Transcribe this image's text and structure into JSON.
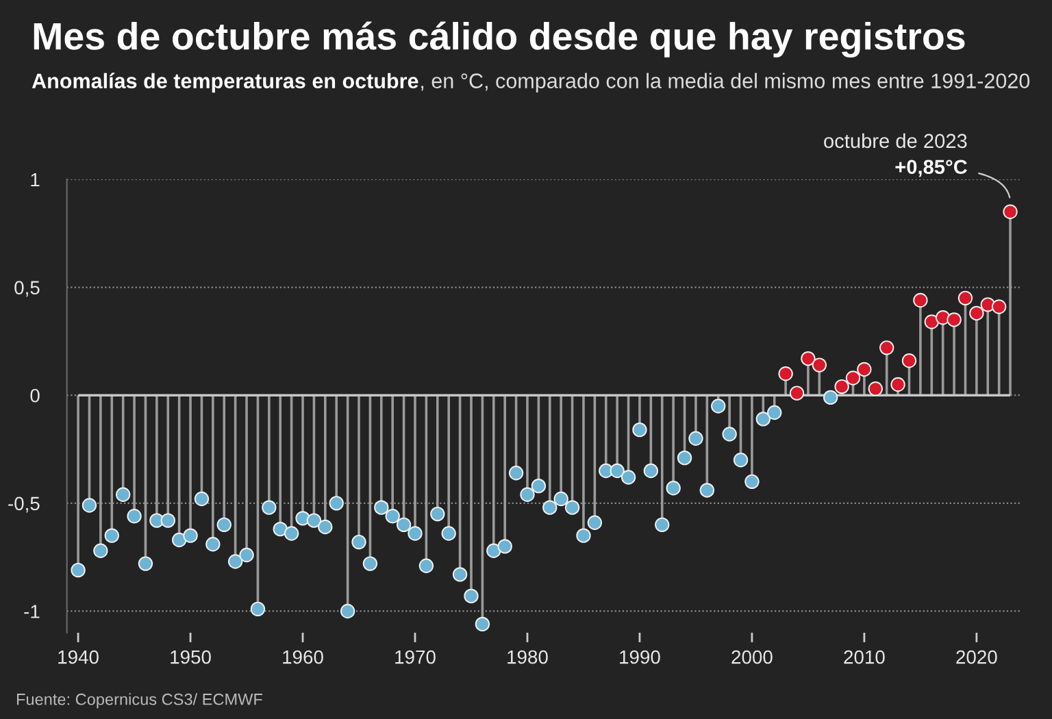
{
  "chart_data": {
    "type": "lollipop",
    "title": "Mes de octubre más cálido desde que hay registros",
    "subtitle": "Anomalías de temperaturas en octubre, en °C, comparado con la media del mismo mes entre 1991-2020",
    "x": [
      1940,
      1941,
      1942,
      1943,
      1944,
      1945,
      1946,
      1947,
      1948,
      1949,
      1950,
      1951,
      1952,
      1953,
      1954,
      1955,
      1956,
      1957,
      1958,
      1959,
      1960,
      1961,
      1962,
      1963,
      1964,
      1965,
      1966,
      1967,
      1968,
      1969,
      1970,
      1971,
      1972,
      1973,
      1974,
      1975,
      1976,
      1977,
      1978,
      1979,
      1980,
      1981,
      1982,
      1983,
      1984,
      1985,
      1986,
      1987,
      1988,
      1989,
      1990,
      1991,
      1992,
      1993,
      1994,
      1995,
      1996,
      1997,
      1998,
      1999,
      2000,
      2001,
      2002,
      2003,
      2004,
      2005,
      2006,
      2007,
      2008,
      2009,
      2010,
      2011,
      2012,
      2013,
      2014,
      2015,
      2016,
      2017,
      2018,
      2019,
      2020,
      2021,
      2022,
      2023
    ],
    "values": [
      -0.81,
      -0.51,
      -0.72,
      -0.65,
      -0.46,
      -0.56,
      -0.78,
      -0.58,
      -0.58,
      -0.67,
      -0.65,
      -0.48,
      -0.69,
      -0.6,
      -0.77,
      -0.74,
      -0.99,
      -0.52,
      -0.62,
      -0.64,
      -0.57,
      -0.58,
      -0.61,
      -0.5,
      -1.0,
      -0.68,
      -0.78,
      -0.52,
      -0.56,
      -0.6,
      -0.64,
      -0.79,
      -0.55,
      -0.64,
      -0.83,
      -0.93,
      -1.06,
      -0.72,
      -0.7,
      -0.36,
      -0.46,
      -0.42,
      -0.52,
      -0.48,
      -0.52,
      -0.65,
      -0.59,
      -0.35,
      -0.35,
      -0.38,
      -0.16,
      -0.35,
      -0.6,
      -0.43,
      -0.29,
      -0.2,
      -0.44,
      -0.05,
      -0.18,
      -0.3,
      -0.4,
      -0.11,
      -0.08,
      0.1,
      0.01,
      0.17,
      0.14,
      -0.01,
      0.04,
      0.08,
      0.12,
      0.03,
      0.22,
      0.05,
      0.16,
      0.44,
      0.34,
      0.36,
      0.35,
      0.45,
      0.38,
      0.42,
      0.41,
      0.85
    ],
    "colors": [
      "#6db3d4",
      "#6db3d4",
      "#6db3d4",
      "#6db3d4",
      "#6db3d4",
      "#6db3d4",
      "#6db3d4",
      "#6db3d4",
      "#6db3d4",
      "#6db3d4",
      "#6db3d4",
      "#6db3d4",
      "#6db3d4",
      "#6db3d4",
      "#6db3d4",
      "#6db3d4",
      "#6db3d4",
      "#6db3d4",
      "#6db3d4",
      "#6db3d4",
      "#6db3d4",
      "#6db3d4",
      "#6db3d4",
      "#6db3d4",
      "#6db3d4",
      "#6db3d4",
      "#6db3d4",
      "#6db3d4",
      "#6db3d4",
      "#6db3d4",
      "#6db3d4",
      "#6db3d4",
      "#6db3d4",
      "#6db3d4",
      "#6db3d4",
      "#6db3d4",
      "#6db3d4",
      "#6db3d4",
      "#6db3d4",
      "#6db3d4",
      "#6db3d4",
      "#6db3d4",
      "#6db3d4",
      "#6db3d4",
      "#6db3d4",
      "#6db3d4",
      "#6db3d4",
      "#6db3d4",
      "#6db3d4",
      "#6db3d4",
      "#6db3d4",
      "#6db3d4",
      "#6db3d4",
      "#6db3d4",
      "#6db3d4",
      "#6db3d4",
      "#6db3d4",
      "#6db3d4",
      "#6db3d4",
      "#6db3d4",
      "#6db3d4",
      "#6db3d4",
      "#6db3d4",
      "#d7192b",
      "#d7192b",
      "#d7192b",
      "#d7192b",
      "#6db3d4",
      "#d7192b",
      "#d7192b",
      "#d7192b",
      "#d7192b",
      "#d7192b",
      "#d7192b",
      "#d7192b",
      "#d7192b",
      "#d7192b",
      "#d7192b",
      "#d7192b",
      "#d7192b",
      "#d7192b",
      "#d7192b",
      "#d7192b",
      "#d7192b"
    ],
    "xlim": [
      1939,
      2024
    ],
    "xticks": [
      1940,
      1950,
      1960,
      1970,
      1980,
      1990,
      2000,
      2010,
      2020
    ],
    "ylim": [
      -1.1,
      1
    ],
    "yticks": [
      {
        "value": 1,
        "label": "1"
      },
      {
        "value": 0.5,
        "label": "0,5"
      },
      {
        "value": 0,
        "label": "0"
      },
      {
        "value": -0.5,
        "label": "-0,5"
      },
      {
        "value": -1,
        "label": "-1"
      }
    ],
    "grid": "y",
    "marker": "circle",
    "annotations": [
      {
        "text": "octubre de 2023\n+0,85°C",
        "x": 2023,
        "y": 0.85
      },
      "Fuente: Copernicus CS3/ ECMWF"
    ]
  }
}
